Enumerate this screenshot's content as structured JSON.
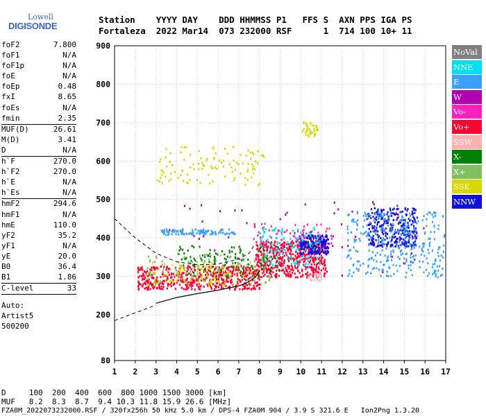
{
  "logo": {
    "line1": "Lowell",
    "line2": "DIGISONDE"
  },
  "header": {
    "line1": "Station    YYYY DAY    DDD HHMMSS P1   FFS S  AXN PPS IGA PS",
    "line2": "Fortaleza  2022 Mar14  073 232000 RSF      1  714 100 10+ 11"
  },
  "params": {
    "group1": [
      {
        "k": "foF2",
        "v": "7.800"
      },
      {
        "k": "foF1",
        "v": "N/A"
      },
      {
        "k": "foF1p",
        "v": "N/A"
      },
      {
        "k": "foE",
        "v": "N/A"
      },
      {
        "k": "foEp",
        "v": "0.48"
      },
      {
        "k": "fxI",
        "v": "8.65"
      },
      {
        "k": "foEs",
        "v": "N/A"
      },
      {
        "k": "fmin",
        "v": "2.35"
      }
    ],
    "group2": [
      {
        "k": "MUF(D)",
        "v": "26.61"
      },
      {
        "k": "M(D)",
        "v": "3.41"
      },
      {
        "k": "D",
        "v": "N/A"
      }
    ],
    "group3": [
      {
        "k": "h`F",
        "v": "270.0"
      },
      {
        "k": "h`F2",
        "v": "270.0"
      },
      {
        "k": "h`E",
        "v": "N/A"
      },
      {
        "k": "h`Es",
        "v": "N/A"
      }
    ],
    "group4": [
      {
        "k": "hmF2",
        "v": "294.6"
      },
      {
        "k": "hmF1",
        "v": "N/A"
      },
      {
        "k": "hmE",
        "v": "110.0"
      },
      {
        "k": "yF2",
        "v": "35.2"
      },
      {
        "k": "yF1",
        "v": "N/A"
      },
      {
        "k": "yE",
        "v": "20.0"
      },
      {
        "k": "B0",
        "v": "36.4"
      },
      {
        "k": "B1",
        "v": "1.86"
      }
    ],
    "group5": [
      {
        "k": "C-level",
        "v": "33"
      }
    ],
    "auto": [
      "Auto:",
      "Artist5",
      "500200"
    ]
  },
  "legend": [
    {
      "label": "NoVal",
      "color": "#808080"
    },
    {
      "label": "NNE",
      "color": "#00e0f0"
    },
    {
      "label": "E",
      "color": "#3aa0ff"
    },
    {
      "label": "W",
      "color": "#b000b0"
    },
    {
      "label": "Vo-",
      "color": "#ff20c0"
    },
    {
      "label": "Vo+",
      "color": "#ff0030"
    },
    {
      "label": "SSW",
      "color": "#ffb0b0"
    },
    {
      "label": "X-",
      "color": "#008000"
    },
    {
      "label": "X+",
      "color": "#80c060"
    },
    {
      "label": "SSE",
      "color": "#d8d800"
    },
    {
      "label": "NNW",
      "color": "#1010e0"
    }
  ],
  "footer": {
    "line1": "D     100  200  400  600  800 1000 1500 3000 [km]",
    "line2": "MUF   8.2  8.3  8.7  9.4 10.3 11.8 15.9 26.6 [MHz]",
    "line3": "FZA0M_2022073232000.RSF / 320fx256h 50 kHz 5.0 km / DPS-4 FZA0M 904 / 3.9 S 321.6 E   Ion2Png 1.3.20"
  },
  "chart_data": {
    "type": "scatter",
    "title": "",
    "xlabel": "",
    "ylabel": "",
    "xlim": [
      1,
      17
    ],
    "ylim": [
      80,
      900
    ],
    "x_ticks": [
      1,
      2,
      3,
      4,
      5,
      6,
      7,
      8,
      9,
      10,
      11,
      12,
      13,
      14,
      15,
      16,
      17
    ],
    "y_ticks": [
      80,
      200,
      300,
      400,
      500,
      600,
      700,
      800,
      900
    ],
    "grid": true,
    "legend_position": "right",
    "clusters": [
      {
        "name": "Vo+",
        "fmin": 2.1,
        "fmax": 8.0,
        "hmin": 268,
        "hmax": 330,
        "n": 520
      },
      {
        "name": "Vo+",
        "fmin": 7.8,
        "fmax": 11.2,
        "hmin": 300,
        "hmax": 395,
        "n": 520
      },
      {
        "name": "E",
        "fmin": 3.2,
        "fmax": 6.8,
        "hmin": 410,
        "hmax": 425,
        "n": 110
      },
      {
        "name": "NNW",
        "fmin": 9.9,
        "fmax": 11.3,
        "hmin": 360,
        "hmax": 410,
        "n": 200
      },
      {
        "name": "NNW",
        "fmin": 13.2,
        "fmax": 15.6,
        "hmin": 380,
        "hmax": 480,
        "n": 300
      },
      {
        "name": "E",
        "fmin": 12.2,
        "fmax": 16.9,
        "hmin": 300,
        "hmax": 470,
        "n": 340
      },
      {
        "name": "NNE",
        "fmin": 8.0,
        "fmax": 11.0,
        "hmin": 330,
        "hmax": 430,
        "n": 120
      },
      {
        "name": "X-",
        "fmin": 4.0,
        "fmax": 9.0,
        "hmin": 300,
        "hmax": 380,
        "n": 120
      },
      {
        "name": "X+",
        "fmin": 2.5,
        "fmax": 8.5,
        "hmin": 280,
        "hmax": 360,
        "n": 110
      },
      {
        "name": "SSE",
        "fmin": 2.5,
        "fmax": 8.0,
        "hmin": 280,
        "hmax": 340,
        "n": 90
      },
      {
        "name": "SSE",
        "fmin": 3.0,
        "fmax": 8.2,
        "hmin": 540,
        "hmax": 640,
        "n": 110
      },
      {
        "name": "SSE",
        "fmin": 10.0,
        "fmax": 10.8,
        "hmin": 665,
        "hmax": 705,
        "n": 40
      },
      {
        "name": "SSW",
        "fmin": 10.3,
        "fmax": 11.0,
        "hmin": 290,
        "hmax": 310,
        "n": 25
      },
      {
        "name": "W",
        "fmin": 3.0,
        "fmax": 16.0,
        "hmin": 300,
        "hmax": 500,
        "n": 60
      },
      {
        "name": "Vo-",
        "fmin": 7.5,
        "fmax": 11.5,
        "hmin": 380,
        "hmax": 440,
        "n": 60
      }
    ],
    "profile": {
      "solid": [
        [
          3.0,
          230
        ],
        [
          4.0,
          245
        ],
        [
          5.0,
          255
        ],
        [
          6.0,
          264
        ],
        [
          7.0,
          275
        ],
        [
          7.5,
          286
        ],
        [
          7.8,
          298
        ],
        [
          8.0,
          315
        ]
      ],
      "dashed_upper": [
        [
          1.0,
          450
        ],
        [
          2.0,
          400
        ],
        [
          3.0,
          360
        ],
        [
          4.0,
          338
        ],
        [
          5.0,
          330
        ],
        [
          6.0,
          332
        ],
        [
          7.0,
          345
        ],
        [
          7.5,
          360
        ],
        [
          7.8,
          385
        ]
      ],
      "dashed_lower": [
        [
          1.0,
          185
        ],
        [
          2.0,
          205
        ],
        [
          3.0,
          225
        ]
      ]
    }
  }
}
